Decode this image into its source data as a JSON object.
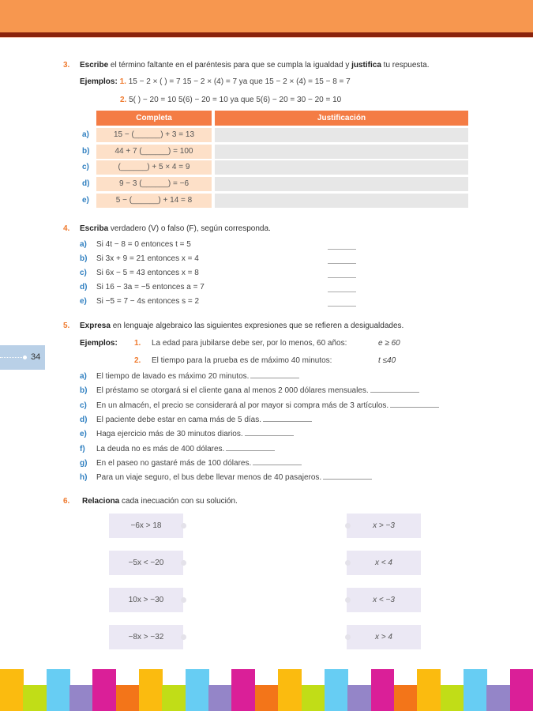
{
  "page_number": "34",
  "colors": {
    "header_band": "#f7974f",
    "header_line": "#8a230c",
    "accent_orange": "#ef7a2e",
    "accent_blue": "#2f7fc0",
    "table_header": "#f47c45",
    "table_cell": "#fde0c8",
    "match_box": "#ebe8f4"
  },
  "q3": {
    "number": "3.",
    "text_bold1": "Escribe",
    "text1": " el término faltante en el paréntesis para que se cumpla la igualdad y ",
    "text_bold2": "justifica",
    "text2": " tu respuesta.",
    "examples_label": "Ejemplos:",
    "ex1_num": "1.",
    "ex1_text": "15 − 2 × (   ) = 7  15 − 2 × (4) = 7  ya que  15 − 2 × (4) = 15 − 8 = 7",
    "ex2_num": "2.",
    "ex2_text": "5(   ) − 20 = 10    5(6) − 20 = 10  ya que  5(6) − 20 = 30 − 20 = 10",
    "table": {
      "headers": [
        "Completa",
        "Justificación"
      ],
      "rows": [
        {
          "letter": "a)",
          "complete": "15 − (______) + 3 = 13",
          "justification": ""
        },
        {
          "letter": "b)",
          "complete": "44 + 7 (______) = 100",
          "justification": ""
        },
        {
          "letter": "c)",
          "complete": "(______) + 5 × 4 = 9",
          "justification": ""
        },
        {
          "letter": "d)",
          "complete": "9 − 3 (______) = −6",
          "justification": ""
        },
        {
          "letter": "e)",
          "complete": "5 − (______) + 14 = 8",
          "justification": ""
        }
      ]
    }
  },
  "q4": {
    "number": "4.",
    "text_bold": "Escriba",
    "text": " verdadero (V) o falso (F), según corresponda.",
    "items": [
      {
        "letter": "a)",
        "text": "Si 4t − 8 = 0 entonces t = 5"
      },
      {
        "letter": "b)",
        "text": "Si 3x + 9 = 21 entonces x = 4"
      },
      {
        "letter": "c)",
        "text": "Si 6x − 5 = 43 entonces x = 8"
      },
      {
        "letter": "d)",
        "text": "Si 16 − 3a = −5 entonces a = 7"
      },
      {
        "letter": "e)",
        "text": "Si −5 = 7 − 4s entonces s = 2"
      }
    ]
  },
  "q5": {
    "number": "5.",
    "text_bold": "Expresa",
    "text": " en lenguaje algebraico las siguientes expresiones que se refieren a desigualdades.",
    "examples_label": "Ejemplos:",
    "examples": [
      {
        "num": "1.",
        "text": "La edad para jubilarse debe ser, por lo menos, 60 años:",
        "answer": "e ≥ 60"
      },
      {
        "num": "2.",
        "text": "El tiempo para la prueba es de máximo 40 minutos:",
        "answer": "t ≤40"
      }
    ],
    "items": [
      {
        "letter": "a)",
        "text": "El tiempo de lavado es máximo 20 minutos."
      },
      {
        "letter": "b)",
        "text": "El préstamo se otorgará si el cliente gana al menos 2 000 dólares mensuales."
      },
      {
        "letter": "c)",
        "text": "En un almacén, el precio se considerará al por mayor si compra más de 3 artículos."
      },
      {
        "letter": "d)",
        "text": "El paciente debe estar en cama más de 5 días."
      },
      {
        "letter": "e)",
        "text": "Haga ejercicio más de 30 minutos diarios."
      },
      {
        "letter": "f)",
        "text": "La deuda no es más de 400 dólares."
      },
      {
        "letter": "g)",
        "text": "En el paseo no gastaré más de 100 dólares."
      },
      {
        "letter": "h)",
        "text": "Para un viaje seguro, el bus debe llevar menos de 40 pasajeros."
      }
    ]
  },
  "q6": {
    "number": "6.",
    "text_bold": "Relaciona",
    "text": " cada inecuación con su solución.",
    "inequations": [
      "−6x > 18",
      "−5x < −20",
      "10x > −30",
      "−8x > −32"
    ],
    "solutions": [
      "x > −3",
      "x < 4",
      "x < −3",
      "x > 4"
    ]
  },
  "footer_bar_colors": [
    "#fbbb0f",
    "#c1dd17",
    "#67cdf3",
    "#9485c8",
    "#da1f98",
    "#f37519"
  ]
}
